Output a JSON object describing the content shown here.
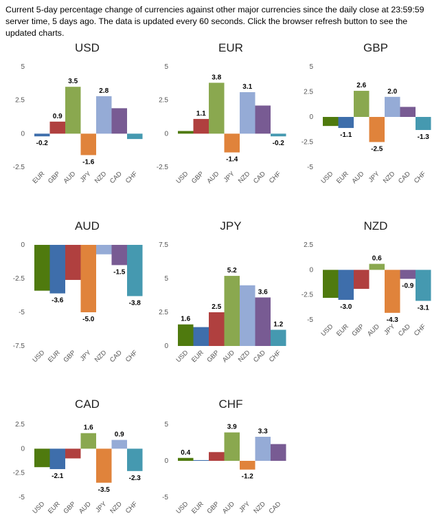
{
  "intro_text": "Current 5-day percentage change of currencies against other major currencies since the daily close at 23:59:59 server time, 5 days ago. The data is updated every 60 seconds. Click the browser refresh button to see the updated charts.",
  "colors": {
    "USD": "#4f7a0e",
    "EUR": "#3e6eab",
    "GBP": "#b0403f",
    "AUD": "#8aa84f",
    "JPY": "#e0833b",
    "NZD": "#95abd6",
    "CAD": "#785b93",
    "CHF": "#4599b0"
  },
  "chart_data": [
    {
      "type": "bar",
      "title": "USD",
      "categories": [
        "EUR",
        "GBP",
        "AUD",
        "JPY",
        "NZD",
        "CAD",
        "CHF"
      ],
      "values": [
        -0.2,
        0.9,
        3.5,
        -1.6,
        2.8,
        1.9,
        -0.4
      ],
      "labels": [
        "-0.2",
        "0.9",
        "3.5",
        "-1.6",
        "2.8",
        "",
        ""
      ],
      "ylim": [
        -2.5,
        5
      ],
      "yticks": [
        5,
        2.5,
        0,
        -2.5
      ],
      "ytick_labels": [
        "5",
        "2.5",
        "0",
        "-2.5"
      ]
    },
    {
      "type": "bar",
      "title": "EUR",
      "categories": [
        "USD",
        "GBP",
        "AUD",
        "JPY",
        "NZD",
        "CAD",
        "CHF"
      ],
      "values": [
        0.2,
        1.1,
        3.8,
        -1.4,
        3.1,
        2.1,
        -0.2
      ],
      "labels": [
        "",
        "1.1",
        "3.8",
        "-1.4",
        "3.1",
        "",
        "-0.2"
      ],
      "ylim": [
        -2.5,
        5
      ],
      "yticks": [
        5,
        2.5,
        0,
        -2.5
      ],
      "ytick_labels": [
        "5",
        "2.5",
        "0",
        "-2.5"
      ]
    },
    {
      "type": "bar",
      "title": "GBP",
      "categories": [
        "USD",
        "EUR",
        "AUD",
        "JPY",
        "NZD",
        "CAD",
        "CHF"
      ],
      "values": [
        -0.9,
        -1.1,
        2.6,
        -2.5,
        2.0,
        1.0,
        -1.3
      ],
      "labels": [
        "",
        "-1.1",
        "2.6",
        "-2.5",
        "2.0",
        "",
        "-1.3"
      ],
      "ylim": [
        -5,
        5
      ],
      "yticks": [
        5,
        2.5,
        0,
        -2.5,
        -5
      ],
      "ytick_labels": [
        "5",
        "2.5",
        "0",
        "-2.5",
        "-5"
      ]
    },
    {
      "type": "bar",
      "title": "AUD",
      "categories": [
        "USD",
        "EUR",
        "GBP",
        "JPY",
        "NZD",
        "CAD",
        "CHF"
      ],
      "values": [
        -3.4,
        -3.6,
        -2.6,
        -5.0,
        -0.7,
        -1.5,
        -3.8
      ],
      "labels": [
        "",
        "-3.6",
        "",
        "-5.0",
        "",
        "-1.5",
        "-3.8"
      ],
      "ylim": [
        -7.5,
        0
      ],
      "yticks": [
        0,
        -2.5,
        -5,
        -7.5
      ],
      "ytick_labels": [
        "0",
        "-2.5",
        "-5",
        "-7.5"
      ]
    },
    {
      "type": "bar",
      "title": "JPY",
      "categories": [
        "USD",
        "EUR",
        "GBP",
        "AUD",
        "NZD",
        "CAD",
        "CHF"
      ],
      "values": [
        1.6,
        1.4,
        2.5,
        5.2,
        4.5,
        3.6,
        1.2
      ],
      "labels": [
        "1.6",
        "",
        "2.5",
        "5.2",
        "",
        "3.6",
        "1.2"
      ],
      "ylim": [
        0,
        7.5
      ],
      "yticks": [
        7.5,
        5,
        2.5,
        0
      ],
      "ytick_labels": [
        "7.5",
        "5",
        "2.5",
        "0"
      ]
    },
    {
      "type": "bar",
      "title": "NZD",
      "categories": [
        "USD",
        "EUR",
        "GBP",
        "AUD",
        "JPY",
        "CAD",
        "CHF"
      ],
      "values": [
        -2.8,
        -3.0,
        -1.9,
        0.6,
        -4.3,
        -0.9,
        -3.1
      ],
      "labels": [
        "",
        "-3.0",
        "",
        "0.6",
        "-4.3",
        "-0.9",
        "-3.1"
      ],
      "ylim": [
        -5,
        2.5
      ],
      "yticks": [
        2.5,
        0,
        -2.5,
        -5
      ],
      "ytick_labels": [
        "2.5",
        "0",
        "-2.5",
        "-5"
      ]
    },
    {
      "type": "bar",
      "title": "CAD",
      "categories": [
        "USD",
        "EUR",
        "GBP",
        "AUD",
        "JPY",
        "NZD",
        "CHF"
      ],
      "values": [
        -1.9,
        -2.1,
        -1.0,
        1.6,
        -3.5,
        0.9,
        -2.3
      ],
      "labels": [
        "",
        "-2.1",
        "",
        "1.6",
        "-3.5",
        "0.9",
        "-2.3"
      ],
      "ylim": [
        -5,
        2.5
      ],
      "yticks": [
        2.5,
        0,
        -2.5,
        -5
      ],
      "ytick_labels": [
        "2.5",
        "0",
        "-2.5",
        "-5"
      ]
    },
    {
      "type": "bar",
      "title": "CHF",
      "categories": [
        "USD",
        "EUR",
        "GBP",
        "AUD",
        "JPY",
        "NZD",
        "CAD"
      ],
      "values": [
        0.4,
        0.1,
        1.2,
        3.9,
        -1.2,
        3.3,
        2.3
      ],
      "labels": [
        "0.4",
        "",
        "",
        "3.9",
        "-1.2",
        "3.3",
        ""
      ],
      "ylim": [
        -5,
        5
      ],
      "yticks": [
        5,
        0,
        -5
      ],
      "ytick_labels": [
        "5",
        "0",
        "-5"
      ]
    }
  ]
}
